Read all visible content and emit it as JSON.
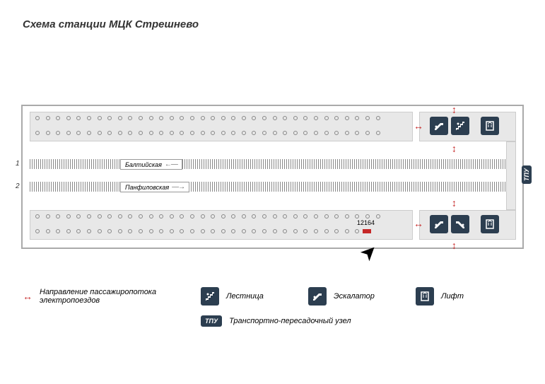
{
  "title": "Схема станции МЦК Стрешнево",
  "tracks": {
    "num1": "1",
    "num2": "2",
    "label1": "Балтийская",
    "label2": "Панфиловская"
  },
  "marker": {
    "num": "12164"
  },
  "tpu": "ТПУ",
  "colors": {
    "icon_bg": "#2c3e50",
    "platform_bg": "#e8e8e8",
    "accent_red": "#c62828",
    "border": "#aaaaaa",
    "dot_border": "#888888"
  },
  "legend": {
    "flow": "Направление пассажиропотока электропоездов",
    "stairs": "Лестница",
    "escalator": "Эскалатор",
    "lift": "Лифт",
    "tpu": "Транспортно-пересадочный узел"
  },
  "platform": {
    "dot_count_row": 34,
    "dot_count_bot2": 32
  }
}
